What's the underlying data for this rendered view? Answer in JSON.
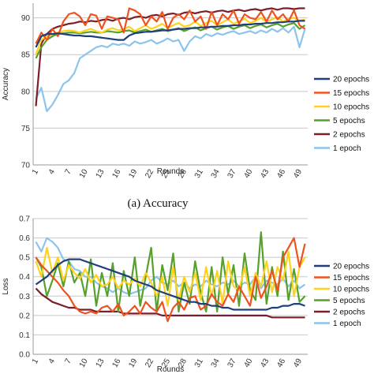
{
  "caption_a": "(a) Accuracy",
  "chart_data": [
    {
      "type": "line",
      "xlabel": "Rounds",
      "ylabel": "Accuracy",
      "ylim": [
        70,
        92
      ],
      "yticks": [
        70,
        75,
        80,
        85,
        90
      ],
      "x": [
        1,
        2,
        3,
        4,
        5,
        6,
        7,
        8,
        9,
        10,
        11,
        12,
        13,
        14,
        15,
        16,
        17,
        18,
        19,
        20,
        21,
        22,
        23,
        24,
        25,
        26,
        27,
        28,
        29,
        30,
        31,
        32,
        33,
        34,
        35,
        36,
        37,
        38,
        39,
        40,
        41,
        42,
        43,
        44,
        45,
        46,
        47,
        48,
        49,
        50
      ],
      "xtick_labels": [
        "1",
        "4",
        "7",
        "10",
        "13",
        "16",
        "19",
        "22",
        "25",
        "28",
        "31",
        "34",
        "37",
        "40",
        "43",
        "46",
        "49"
      ],
      "grid": "horizontal",
      "legend": "right",
      "series": [
        {
          "name": "20 epochs",
          "color": "#1f3f7a",
          "values": [
            86.0,
            87.5,
            87.8,
            87.8,
            87.9,
            87.8,
            87.7,
            87.6,
            87.6,
            87.5,
            87.5,
            87.4,
            87.3,
            87.2,
            87.1,
            87.0,
            87.0,
            87.6,
            87.9,
            88.0,
            88.1,
            88.1,
            88.2,
            88.3,
            88.3,
            88.4,
            88.5,
            88.5,
            88.6,
            88.6,
            88.7,
            88.7,
            88.8,
            88.8,
            88.9,
            88.9,
            89.0,
            89.0,
            89.1,
            89.1,
            89.2,
            89.2,
            89.3,
            89.3,
            89.4,
            89.4,
            89.5,
            89.5,
            89.6,
            89.6
          ]
        },
        {
          "name": "15 epochs",
          "color": "#f0521e",
          "values": [
            86.5,
            88.0,
            87.0,
            88.5,
            87.5,
            89.5,
            90.5,
            90.7,
            90.2,
            89.0,
            90.5,
            90.3,
            88.5,
            90.2,
            90.0,
            89.8,
            88.0,
            91.3,
            91.0,
            90.5,
            89.0,
            90.2,
            89.5,
            90.8,
            88.5,
            90.0,
            90.5,
            89.8,
            91.0,
            89.5,
            90.2,
            88.5,
            90.8,
            89.0,
            90.5,
            89.8,
            91.0,
            89.2,
            90.5,
            90.0,
            89.8,
            90.8,
            89.5,
            91.0,
            89.8,
            90.5,
            89.5,
            91.0,
            89.0,
            88.5
          ]
        },
        {
          "name": "10 epochs",
          "color": "#ffd21f",
          "values": [
            85.0,
            87.0,
            87.5,
            87.8,
            88.0,
            88.2,
            88.3,
            88.2,
            88.0,
            88.3,
            88.5,
            88.2,
            88.0,
            88.4,
            88.6,
            88.3,
            88.5,
            88.8,
            88.2,
            88.6,
            89.0,
            88.5,
            88.8,
            89.2,
            88.6,
            89.0,
            89.3,
            88.8,
            89.0,
            89.5,
            88.9,
            89.3,
            89.6,
            89.0,
            89.4,
            89.8,
            89.2,
            89.5,
            89.9,
            89.3,
            89.6,
            90.0,
            89.4,
            89.8,
            90.1,
            89.5,
            89.9,
            90.0,
            89.6,
            89.8
          ]
        },
        {
          "name": "5 epochs",
          "color": "#56a02c",
          "values": [
            84.5,
            86.0,
            87.0,
            87.5,
            87.8,
            87.9,
            88.0,
            88.0,
            87.9,
            88.0,
            88.1,
            88.0,
            88.0,
            88.2,
            88.1,
            88.0,
            88.2,
            88.3,
            88.0,
            88.2,
            88.4,
            88.1,
            88.3,
            88.5,
            88.2,
            88.4,
            88.6,
            88.2,
            88.5,
            88.7,
            88.3,
            88.6,
            88.8,
            88.4,
            88.7,
            88.9,
            88.5,
            88.8,
            89.0,
            88.6,
            88.9,
            89.1,
            88.7,
            89.0,
            89.2,
            88.8,
            89.1,
            89.3,
            88.5,
            89.0
          ]
        },
        {
          "name": "2 epochs",
          "color": "#7b1f2a",
          "values": [
            78.0,
            86.5,
            87.8,
            88.5,
            88.8,
            89.0,
            89.2,
            89.3,
            89.5,
            89.4,
            89.6,
            89.5,
            89.7,
            89.8,
            89.6,
            89.9,
            90.0,
            89.8,
            90.1,
            90.2,
            90.0,
            90.3,
            90.4,
            90.2,
            90.5,
            90.6,
            90.4,
            90.7,
            90.8,
            90.6,
            90.8,
            90.9,
            90.7,
            90.9,
            91.0,
            90.8,
            91.0,
            91.1,
            90.9,
            91.1,
            91.2,
            91.0,
            91.2,
            91.3,
            91.1,
            91.3,
            91.3,
            91.2,
            91.3,
            91.3
          ]
        },
        {
          "name": "1 epoch",
          "color": "#8cc4ec",
          "values": [
            79.0,
            80.5,
            77.3,
            78.2,
            79.5,
            81.0,
            81.5,
            82.5,
            84.5,
            85.0,
            85.5,
            86.0,
            86.2,
            86.0,
            86.5,
            86.3,
            86.5,
            86.2,
            86.8,
            86.5,
            86.7,
            87.0,
            86.5,
            86.8,
            87.2,
            86.8,
            87.0,
            85.5,
            86.8,
            87.5,
            87.2,
            87.8,
            87.5,
            87.9,
            87.7,
            88.0,
            88.2,
            87.8,
            88.0,
            88.2,
            87.9,
            88.3,
            88.0,
            88.5,
            88.1,
            88.6,
            88.0,
            88.8,
            86.0,
            88.5
          ]
        }
      ]
    },
    {
      "type": "line",
      "xlabel": "Rounds",
      "ylabel": "Loss",
      "ylim": [
        0,
        0.7
      ],
      "yticks": [
        0,
        0.1,
        0.2,
        0.3,
        0.4,
        0.5,
        0.6,
        0.7
      ],
      "x": [
        1,
        2,
        3,
        4,
        5,
        6,
        7,
        8,
        9,
        10,
        11,
        12,
        13,
        14,
        15,
        16,
        17,
        18,
        19,
        20,
        21,
        22,
        23,
        24,
        25,
        26,
        27,
        28,
        29,
        30,
        31,
        32,
        33,
        34,
        35,
        36,
        37,
        38,
        39,
        40,
        41,
        42,
        43,
        44,
        45,
        46,
        47,
        48,
        49,
        50
      ],
      "xtick_labels": [
        "1",
        "4",
        "7",
        "10",
        "13",
        "16",
        "19",
        "22",
        "25",
        "28",
        "31",
        "34",
        "37",
        "40",
        "43",
        "46",
        "49"
      ],
      "grid": "horizontal",
      "legend": "right",
      "series": [
        {
          "name": "20 epochs",
          "color": "#1f3f7a",
          "values": [
            0.36,
            0.38,
            0.4,
            0.43,
            0.46,
            0.48,
            0.49,
            0.49,
            0.49,
            0.48,
            0.47,
            0.46,
            0.45,
            0.44,
            0.43,
            0.42,
            0.41,
            0.4,
            0.38,
            0.37,
            0.36,
            0.35,
            0.33,
            0.32,
            0.31,
            0.3,
            0.29,
            0.28,
            0.27,
            0.27,
            0.26,
            0.26,
            0.25,
            0.25,
            0.24,
            0.24,
            0.23,
            0.23,
            0.23,
            0.23,
            0.23,
            0.23,
            0.23,
            0.24,
            0.24,
            0.25,
            0.25,
            0.26,
            0.26,
            0.25
          ]
        },
        {
          "name": "15 epochs",
          "color": "#f0521e",
          "values": [
            0.5,
            0.46,
            0.43,
            0.4,
            0.37,
            0.33,
            0.3,
            0.25,
            0.22,
            0.21,
            0.22,
            0.21,
            0.24,
            0.25,
            0.22,
            0.26,
            0.2,
            0.22,
            0.25,
            0.21,
            0.27,
            0.24,
            0.22,
            0.27,
            0.17,
            0.24,
            0.27,
            0.23,
            0.29,
            0.3,
            0.23,
            0.25,
            0.31,
            0.27,
            0.25,
            0.31,
            0.27,
            0.35,
            0.3,
            0.25,
            0.4,
            0.29,
            0.35,
            0.43,
            0.33,
            0.5,
            0.55,
            0.6,
            0.45,
            0.57
          ]
        },
        {
          "name": "10 epochs",
          "color": "#ffd21f",
          "values": [
            0.48,
            0.4,
            0.55,
            0.42,
            0.5,
            0.38,
            0.46,
            0.42,
            0.39,
            0.44,
            0.37,
            0.41,
            0.35,
            0.36,
            0.4,
            0.34,
            0.38,
            0.36,
            0.39,
            0.35,
            0.42,
            0.37,
            0.3,
            0.4,
            0.25,
            0.45,
            0.28,
            0.4,
            0.32,
            0.42,
            0.28,
            0.45,
            0.3,
            0.43,
            0.26,
            0.48,
            0.35,
            0.33,
            0.45,
            0.3,
            0.42,
            0.35,
            0.48,
            0.32,
            0.45,
            0.38,
            0.53,
            0.3,
            0.45,
            0.5
          ]
        },
        {
          "name": "5 epochs",
          "color": "#56a02c",
          "values": [
            0.5,
            0.45,
            0.3,
            0.38,
            0.47,
            0.35,
            0.48,
            0.37,
            0.42,
            0.3,
            0.49,
            0.25,
            0.42,
            0.3,
            0.47,
            0.22,
            0.43,
            0.3,
            0.5,
            0.25,
            0.4,
            0.55,
            0.22,
            0.46,
            0.33,
            0.52,
            0.22,
            0.37,
            0.26,
            0.48,
            0.32,
            0.22,
            0.45,
            0.22,
            0.5,
            0.31,
            0.46,
            0.25,
            0.52,
            0.33,
            0.28,
            0.63,
            0.26,
            0.45,
            0.3,
            0.53,
            0.28,
            0.44,
            0.27,
            0.3
          ]
        },
        {
          "name": "2 epochs",
          "color": "#7b1f2a",
          "values": [
            0.34,
            0.31,
            0.29,
            0.27,
            0.26,
            0.25,
            0.24,
            0.24,
            0.23,
            0.23,
            0.23,
            0.22,
            0.22,
            0.22,
            0.22,
            0.22,
            0.21,
            0.21,
            0.21,
            0.21,
            0.21,
            0.21,
            0.21,
            0.2,
            0.2,
            0.2,
            0.2,
            0.2,
            0.2,
            0.2,
            0.2,
            0.2,
            0.2,
            0.2,
            0.2,
            0.2,
            0.2,
            0.2,
            0.2,
            0.2,
            0.2,
            0.2,
            0.2,
            0.19,
            0.19,
            0.19,
            0.19,
            0.19,
            0.19,
            0.19
          ]
        },
        {
          "name": "1 epoch",
          "color": "#8cc4ec",
          "values": [
            0.58,
            0.53,
            0.6,
            0.58,
            0.55,
            0.49,
            0.48,
            0.44,
            0.43,
            0.4,
            0.4,
            0.37,
            0.35,
            0.34,
            0.32,
            0.34,
            0.32,
            0.31,
            0.32,
            0.33,
            0.34,
            0.38,
            0.4,
            0.37,
            0.36,
            0.38,
            0.35,
            0.37,
            0.34,
            0.36,
            0.35,
            0.38,
            0.36,
            0.35,
            0.37,
            0.36,
            0.38,
            0.35,
            0.37,
            0.36,
            0.4,
            0.34,
            0.38,
            0.37,
            0.36,
            0.39,
            0.35,
            0.38,
            0.34,
            0.36
          ]
        }
      ]
    }
  ]
}
